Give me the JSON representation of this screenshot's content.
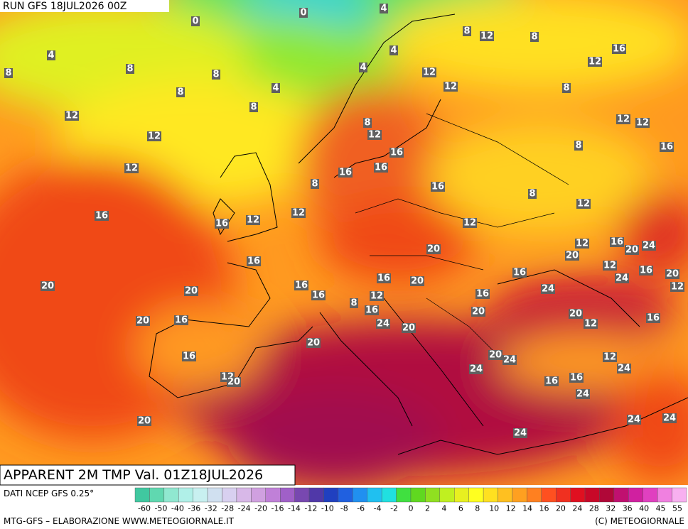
{
  "header": {
    "run": "RUN GFS 18JUL2026 00Z"
  },
  "title": "APPARENT 2M TMP Val. 01Z18JUL2026",
  "source": "DATI NCEP GFS 0.25°",
  "credit": "MTG-GFS – ELABORAZIONE WWW.METEOGIORNALE.IT",
  "copyright": "(C) METEOGIORNALE",
  "map_labels": [
    0,
    0,
    4,
    4,
    8,
    8,
    8,
    4,
    4,
    8,
    12,
    8,
    16,
    12,
    12,
    12,
    8,
    8,
    4,
    8,
    12,
    12,
    12,
    12,
    8,
    12,
    8,
    16,
    16,
    16,
    16,
    12,
    8,
    16,
    8,
    12,
    16,
    12,
    16,
    12,
    12,
    20,
    12,
    16,
    20,
    24,
    20,
    16,
    12,
    16,
    20,
    16,
    16,
    20,
    16,
    24,
    12,
    20,
    20,
    24,
    16,
    12,
    16,
    8,
    16,
    20,
    20,
    12,
    16,
    20,
    16,
    24,
    20,
    20,
    16,
    20,
    24,
    12,
    24,
    24,
    12,
    20,
    16,
    16,
    24,
    20,
    24,
    24,
    24
  ],
  "colorbar": {
    "ticks": [
      -60,
      -50,
      -40,
      -36,
      -32,
      -28,
      -24,
      -20,
      -16,
      -14,
      -12,
      -10,
      -8,
      -6,
      -4,
      -2,
      0,
      2,
      4,
      6,
      8,
      10,
      12,
      14,
      16,
      20,
      24,
      28,
      32,
      36,
      40,
      45,
      55
    ],
    "colors": [
      "#40c8a0",
      "#60d8b0",
      "#90e8d0",
      "#b0f0e8",
      "#c8f0f0",
      "#d0e0f0",
      "#d8d0f0",
      "#d8b8e8",
      "#d0a0e0",
      "#c080d8",
      "#a060c8",
      "#7848b0",
      "#5038a8",
      "#2040c0",
      "#2060e0",
      "#2090f0",
      "#20c0f0",
      "#20e0e0",
      "#40e040",
      "#60d820",
      "#90e020",
      "#c0f020",
      "#e8f020",
      "#ffff20",
      "#ffe020",
      "#ffc020",
      "#ffa020",
      "#ff8020",
      "#ff5020",
      "#f03020",
      "#e01020",
      "#c80828",
      "#b00838",
      "#c01070",
      "#d020a0",
      "#e040c0",
      "#f080e0",
      "#f8b0f0"
    ]
  }
}
